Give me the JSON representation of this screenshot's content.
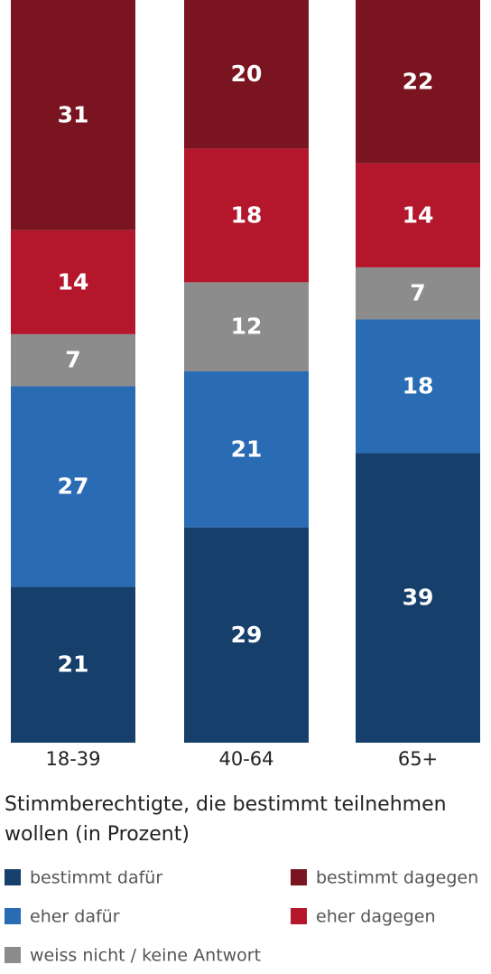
{
  "chart_data": {
    "type": "stacked_bar",
    "title": "Stimmberechtigte, die bestimmt teilnehmen wollen (in Prozent)",
    "categories": [
      "18-39",
      "40-64",
      "65+"
    ],
    "series": [
      {
        "name": "bestimmt dafür",
        "color": "#163f6c",
        "values": [
          21,
          29,
          39
        ]
      },
      {
        "name": "eher dafür",
        "color": "#2a6cb4",
        "values": [
          27,
          21,
          18
        ]
      },
      {
        "name": "weiss nicht / keine Antwort",
        "color": "#8c8c8c",
        "values": [
          7,
          12,
          7
        ]
      },
      {
        "name": "eher dagegen",
        "color": "#b4172c",
        "values": [
          14,
          18,
          14
        ]
      },
      {
        "name": "bestimmt dagegen",
        "color": "#7a1420",
        "values": [
          31,
          20,
          22
        ]
      }
    ]
  }
}
